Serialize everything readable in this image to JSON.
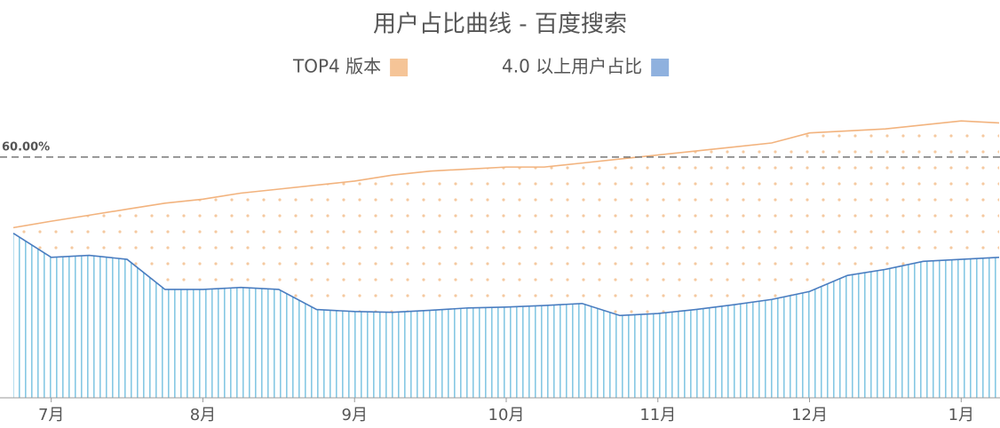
{
  "chart_data": {
    "type": "area",
    "title": "用户占比曲线 - 百度搜索",
    "categories": [
      null,
      "7月",
      null,
      null,
      null,
      "8月",
      null,
      null,
      null,
      "9月",
      null,
      null,
      null,
      "10月",
      null,
      null,
      null,
      "11月",
      null,
      null,
      null,
      "12月",
      null,
      null,
      null,
      "1月",
      null
    ],
    "series": [
      {
        "name": "TOP4 版本",
        "color": "#f2b37e",
        "values": [
          42.4,
          44,
          45.5,
          47,
          48.5,
          49.5,
          51,
          52,
          53,
          54,
          55.5,
          56.5,
          57,
          57.5,
          57.5,
          58.5,
          59.5,
          60.5,
          61.5,
          62.5,
          63.5,
          66,
          66.5,
          67,
          68,
          69,
          68.5
        ]
      },
      {
        "name": "4.0 以上用户占比",
        "color": "#4a7dc0",
        "values": [
          41,
          35,
          35.5,
          34.5,
          27,
          27,
          27.5,
          27,
          22,
          21.5,
          21.3,
          21.8,
          22.4,
          22.6,
          23,
          23.5,
          20.5,
          21,
          22,
          23.2,
          24.5,
          26.5,
          30.5,
          32,
          34,
          34.5,
          35
        ]
      }
    ],
    "ylim": [
      0,
      77
    ],
    "reference_line": {
      "value": 60,
      "label": "60.00%"
    }
  }
}
